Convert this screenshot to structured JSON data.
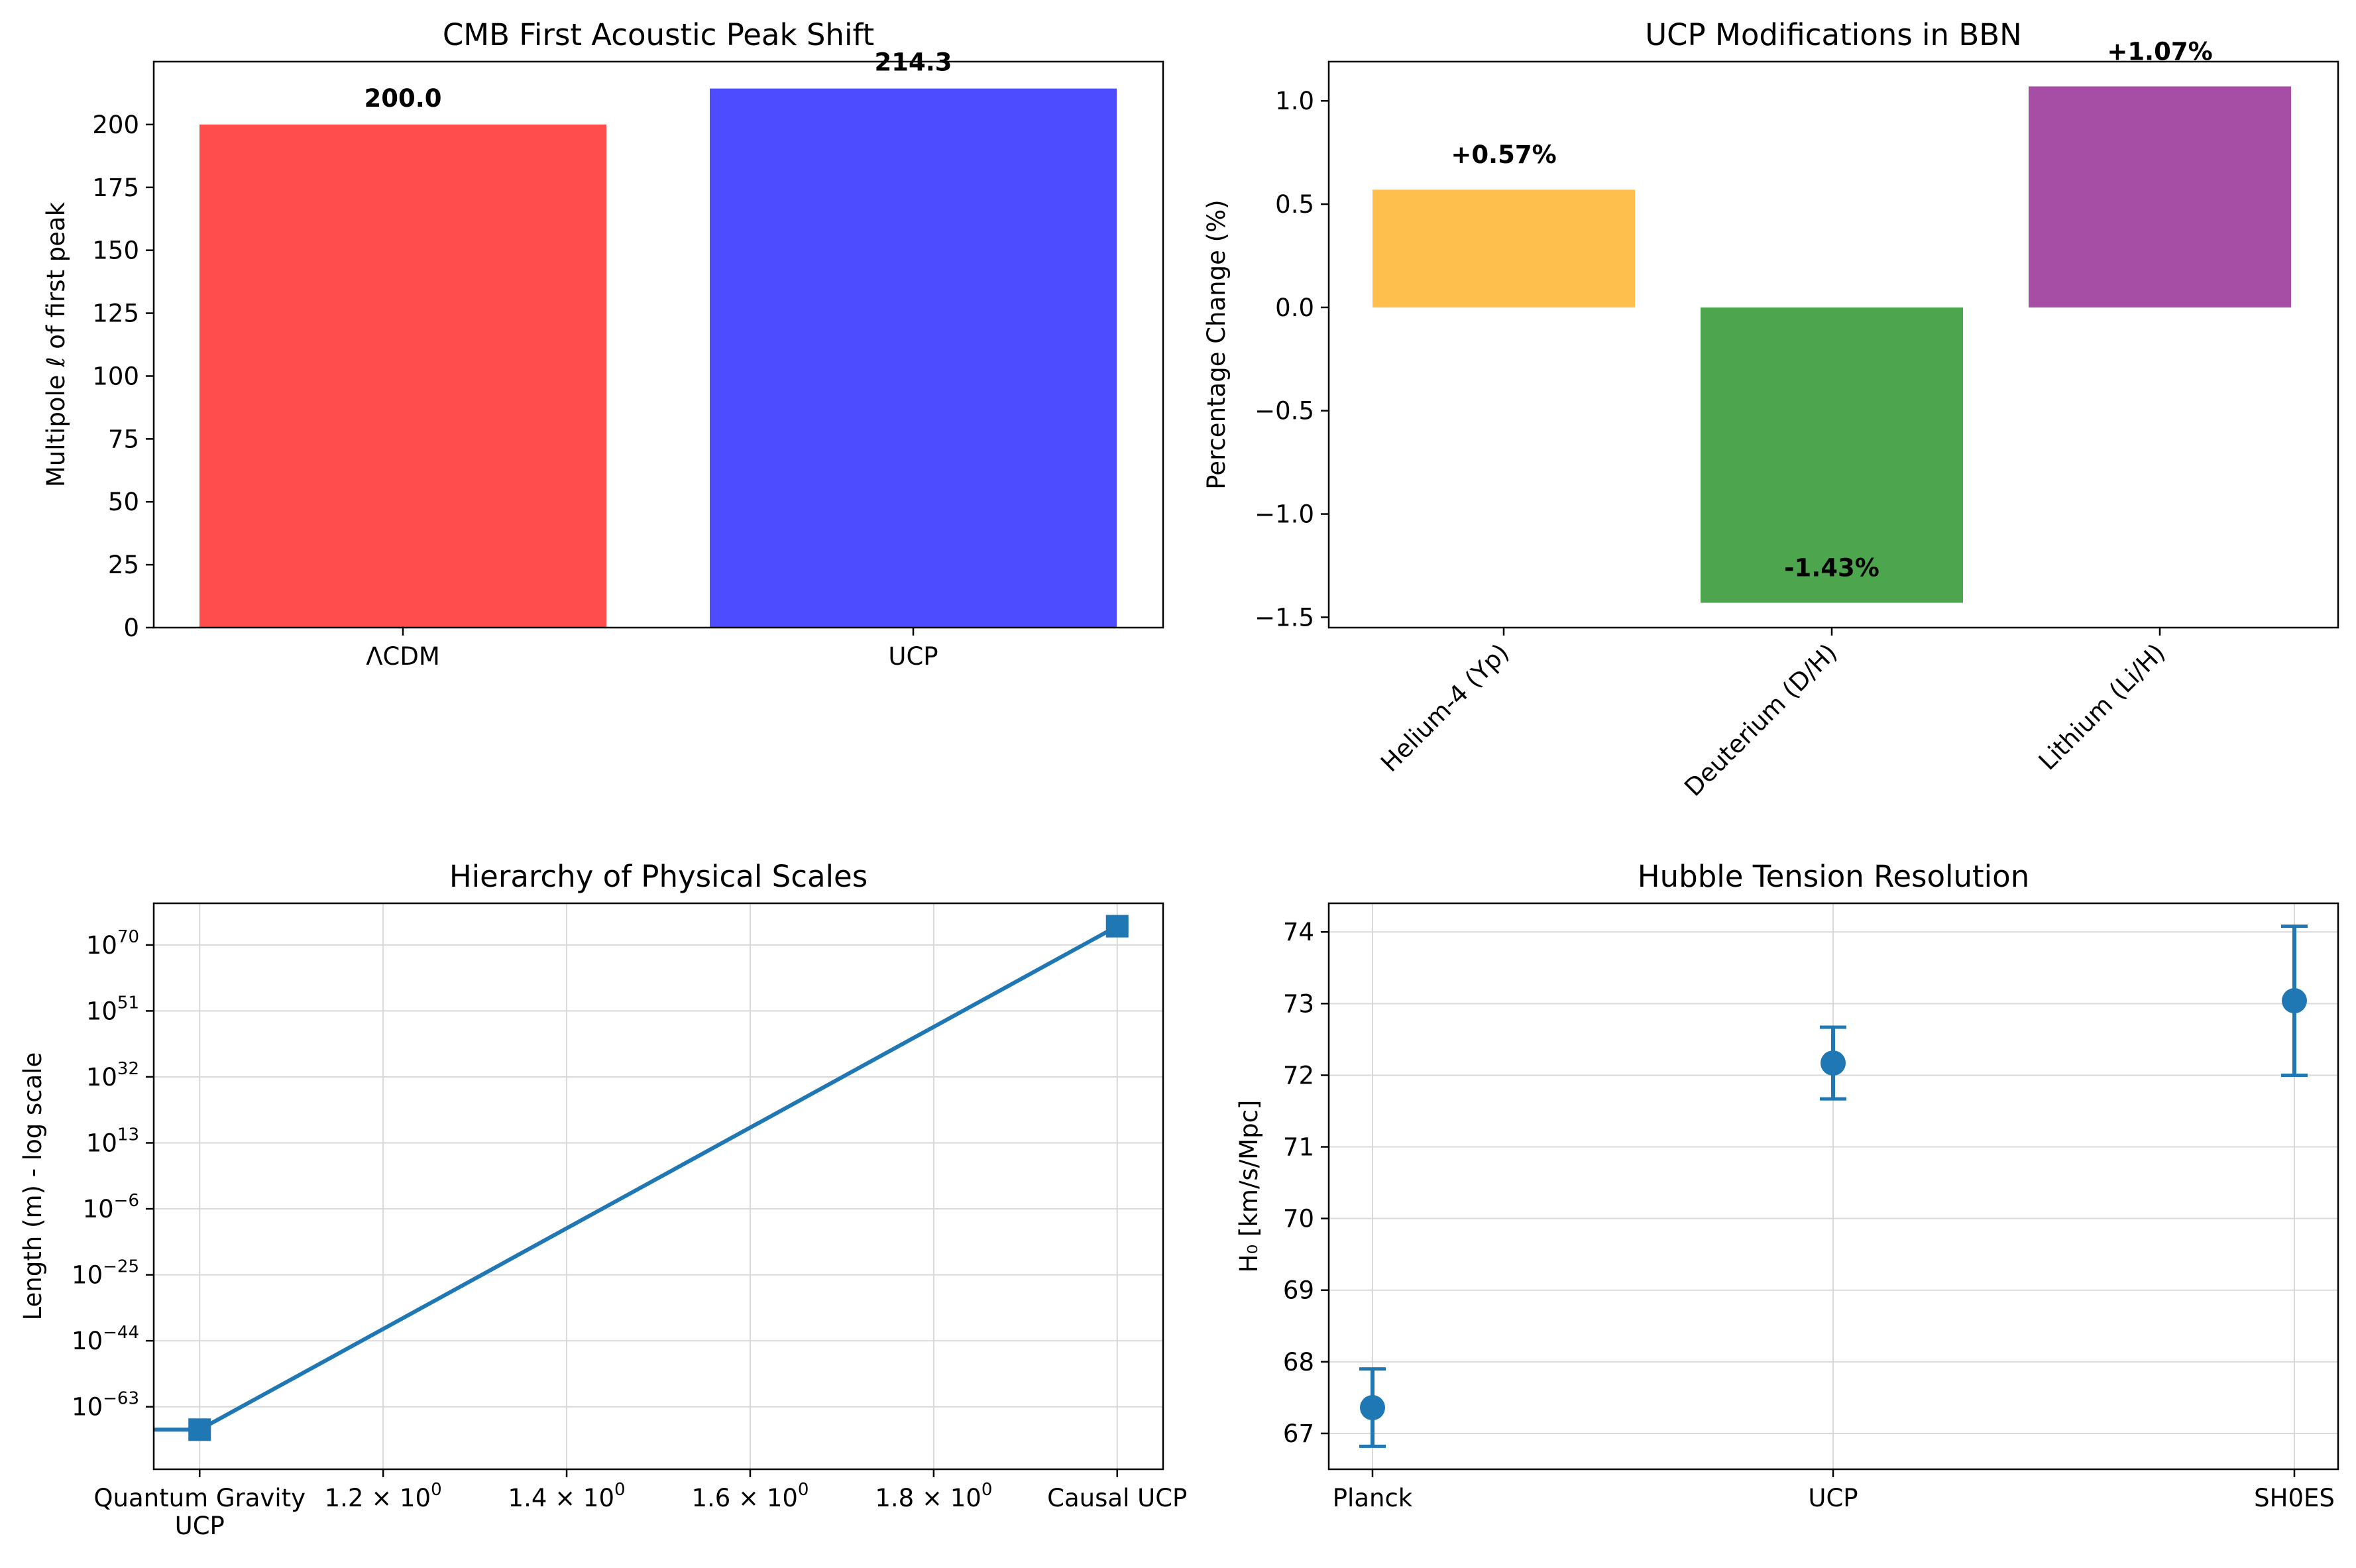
{
  "chart_data": [
    {
      "type": "bar",
      "title": "CMB First Acoustic Peak Shift",
      "xlabel": "",
      "ylabel": "Multipole ℓ of first peak",
      "categories": [
        "ΛCDM",
        "UCP"
      ],
      "values": [
        200.0,
        214.3
      ],
      "value_labels": [
        "200.0",
        "214.3"
      ],
      "colors": [
        "#ff4d4d",
        "#4d4dff"
      ],
      "ylim": [
        0,
        225
      ],
      "yticks": [
        0,
        25,
        50,
        75,
        100,
        125,
        150,
        175,
        200
      ],
      "grid": false
    },
    {
      "type": "bar",
      "title": "UCP Modifications in BBN",
      "xlabel": "",
      "ylabel": "Percentage Change (%)",
      "categories": [
        "Helium-4 (Yp)",
        "Deuterium (D/H)",
        "Lithium (Li/H)"
      ],
      "values": [
        0.57,
        -1.43,
        1.07
      ],
      "value_labels": [
        "+0.57%",
        "-1.43%",
        "+1.07%"
      ],
      "colors": [
        "#ffbf4d",
        "#4da64d",
        "#a64da6"
      ],
      "ylim": [
        -1.55,
        1.19
      ],
      "yticks": [
        -1.5,
        -1.0,
        -0.5,
        0.0,
        0.5,
        1.0
      ],
      "ytick_labels": [
        "−1.5",
        "−1.0",
        "−0.5",
        "0.0",
        "0.5",
        "1.0"
      ],
      "xtick_rotation": 45,
      "grid": false
    },
    {
      "type": "line",
      "title": "Hierarchy of Physical Scales",
      "xlabel": "",
      "ylabel": "Length (m) - log scale",
      "yscale": "log",
      "series": [
        {
          "x": [
            1,
            2
          ],
          "log10_y": [
            -69.6,
            75.4
          ],
          "color": "#1f77b4",
          "marker": "square"
        }
      ],
      "x_categories": [
        {
          "x": 1,
          "label": [
            "Quantum Gravity",
            "UCP"
          ]
        },
        {
          "x": 2,
          "label": [
            "Causal UCP"
          ]
        }
      ],
      "xticks": [
        {
          "x": 1.2,
          "base": "1.2 × 10",
          "exp": "0"
        },
        {
          "x": 1.4,
          "base": "1.4 × 10",
          "exp": "0"
        },
        {
          "x": 1.6,
          "base": "1.6 × 10",
          "exp": "0"
        },
        {
          "x": 1.8,
          "base": "1.8 × 10",
          "exp": "0"
        }
      ],
      "yticks": [
        {
          "exp_value": -63,
          "label": "−63"
        },
        {
          "exp_value": -44,
          "label": "−44"
        },
        {
          "exp_value": -25,
          "label": "−25"
        },
        {
          "exp_value": -6,
          "label": "−6"
        },
        {
          "exp_value": 13,
          "label": "13"
        },
        {
          "exp_value": 32,
          "label": "32"
        },
        {
          "exp_value": 51,
          "label": "51"
        },
        {
          "exp_value": 70,
          "label": "70"
        }
      ],
      "ytick_base": "10",
      "xlim": [
        0.95,
        2.05
      ],
      "ylim_log10": [
        -81,
        82
      ],
      "grid": true
    },
    {
      "type": "scatter",
      "title": "Hubble Tension Resolution",
      "xlabel": "",
      "ylabel": "H₀ [km/s/Mpc]",
      "categories": [
        "Planck",
        "UCP",
        "SH0ES"
      ],
      "values": [
        67.36,
        72.17,
        73.04
      ],
      "errors": [
        0.54,
        0.5,
        1.04
      ],
      "color": "#1f77b4",
      "ylim": [
        66.5,
        74.4
      ],
      "yticks": [
        67,
        68,
        69,
        70,
        71,
        72,
        73,
        74
      ],
      "grid": true
    }
  ]
}
